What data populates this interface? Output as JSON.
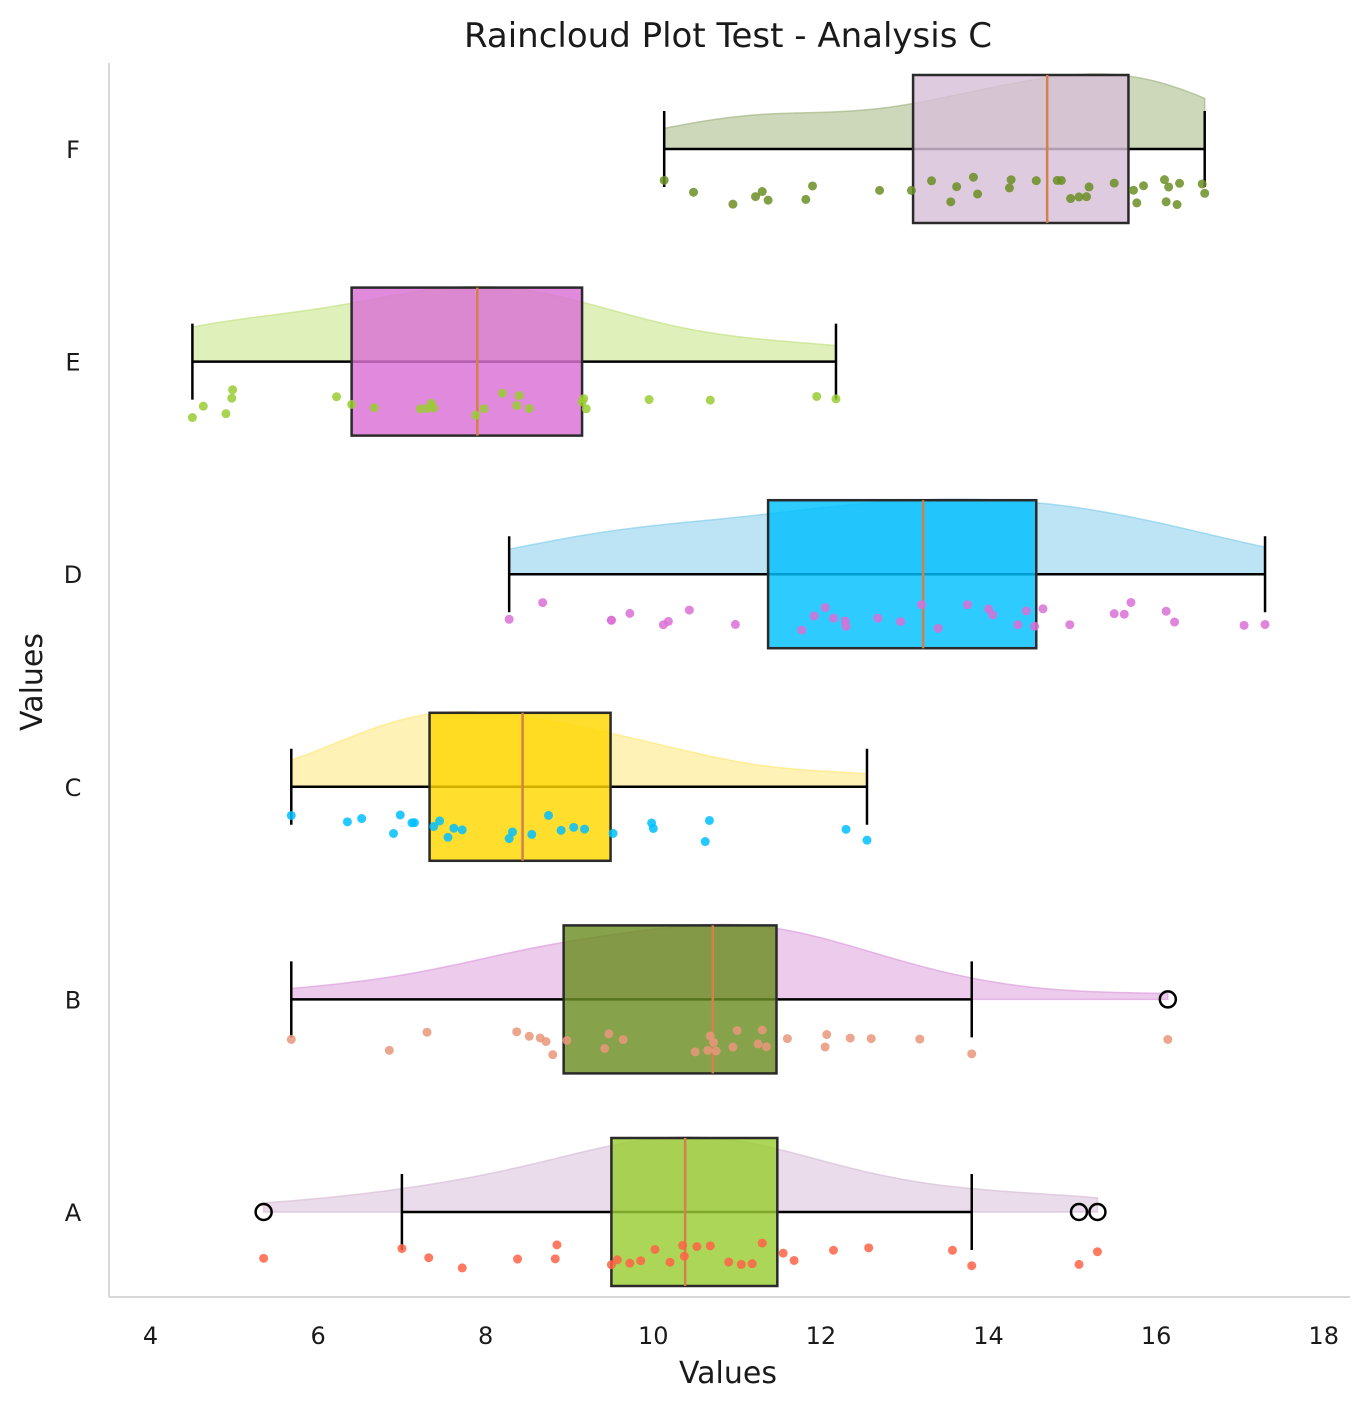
{
  "chart_data": {
    "type": "raincloud",
    "orientation": "horizontal",
    "title": "Raincloud Plot Test - Analysis C",
    "xlabel": "Values",
    "ylabel": "Values",
    "xlim": [
      3.5,
      18.3
    ],
    "xticks": [
      4,
      6,
      8,
      10,
      12,
      14,
      16,
      18
    ],
    "grid": false,
    "categories": [
      "A",
      "B",
      "C",
      "D",
      "E",
      "F"
    ],
    "series": [
      {
        "name": "A",
        "box_color": "#9acd32",
        "cloud_color": "#d8bfd8",
        "point_color": "#ff6347",
        "box": {
          "whislo": 7.0,
          "q1": 9.5,
          "med": 10.38,
          "q3": 11.48,
          "whishi": 13.8
        },
        "fliers": [
          5.35,
          15.08,
          15.3
        ],
        "density_range": [
          5.35,
          15.3
        ],
        "points": [
          5.35,
          7.0,
          7.32,
          7.72,
          8.38,
          8.83,
          8.85,
          9.5,
          9.57,
          9.72,
          9.85,
          10.02,
          10.2,
          10.35,
          10.37,
          10.52,
          10.68,
          10.9,
          11.05,
          11.18,
          11.3,
          11.55,
          11.68,
          12.15,
          12.57,
          13.57,
          13.8,
          15.08,
          15.3
        ]
      },
      {
        "name": "B",
        "box_color": "#6b8e23",
        "cloud_color": "#dda0dd",
        "point_color": "#e9967a",
        "box": {
          "whislo": 5.68,
          "q1": 8.93,
          "med": 10.71,
          "q3": 11.47,
          "whishi": 13.8
        },
        "fliers": [
          16.14
        ],
        "density_range": [
          5.68,
          16.14
        ],
        "points": [
          5.68,
          6.85,
          7.3,
          8.37,
          8.52,
          8.65,
          8.72,
          8.8,
          8.97,
          9.42,
          9.47,
          9.64,
          10.5,
          10.65,
          10.68,
          10.72,
          10.75,
          10.95,
          11.0,
          11.25,
          11.3,
          11.35,
          11.6,
          12.05,
          12.07,
          12.35,
          12.6,
          13.18,
          13.8,
          16.14
        ]
      },
      {
        "name": "C",
        "box_color": "#ffd700",
        "cloud_color": "#ffe87c",
        "point_color": "#00bfff",
        "box": {
          "whislo": 5.68,
          "q1": 7.33,
          "med": 8.44,
          "q3": 9.49,
          "whishi": 12.55
        },
        "fliers": [],
        "density_range": [
          5.68,
          12.55
        ],
        "points": [
          5.68,
          6.35,
          6.52,
          6.9,
          6.98,
          7.12,
          7.15,
          7.38,
          7.45,
          7.55,
          7.62,
          7.72,
          8.28,
          8.32,
          8.55,
          8.75,
          8.9,
          9.05,
          9.18,
          9.52,
          9.98,
          10.0,
          10.62,
          10.67,
          12.3,
          12.55
        ]
      },
      {
        "name": "D",
        "box_color": "#00bfff",
        "cloud_color": "#87ceeb",
        "point_color": "#da70d6",
        "box": {
          "whislo": 8.28,
          "q1": 11.37,
          "med": 13.22,
          "q3": 14.57,
          "whishi": 17.3
        },
        "fliers": [],
        "density_range": [
          8.28,
          17.3
        ],
        "points": [
          8.28,
          8.68,
          9.5,
          9.5,
          9.72,
          10.12,
          10.18,
          10.43,
          10.98,
          11.77,
          11.92,
          12.05,
          12.15,
          12.29,
          12.3,
          12.68,
          12.95,
          13.2,
          13.4,
          13.75,
          14.0,
          14.05,
          14.35,
          14.45,
          14.55,
          14.65,
          14.97,
          15.5,
          15.62,
          15.7,
          16.12,
          16.22,
          17.05,
          17.3
        ]
      },
      {
        "name": "E",
        "box_color": "#da70d6",
        "cloud_color": "#c5e384",
        "point_color": "#9acd32",
        "box": {
          "whislo": 4.5,
          "q1": 6.4,
          "med": 7.9,
          "q3": 9.15,
          "whishi": 12.18
        },
        "fliers": [],
        "density_range": [
          4.5,
          12.18
        ],
        "points": [
          4.5,
          4.63,
          4.9,
          4.97,
          4.98,
          6.22,
          6.4,
          6.67,
          7.22,
          7.3,
          7.35,
          7.38,
          7.88,
          7.98,
          8.2,
          8.37,
          8.4,
          8.52,
          9.15,
          9.17,
          9.2,
          9.95,
          10.68,
          11.95,
          12.18
        ]
      },
      {
        "name": "F",
        "box_color": "#d8bfd8",
        "cloud_color": "#a4b884",
        "point_color": "#6b8e23",
        "box": {
          "whislo": 10.13,
          "q1": 13.1,
          "med": 14.7,
          "q3": 15.67,
          "whishi": 16.58
        },
        "fliers": [],
        "density_range": [
          10.13,
          16.58
        ],
        "points": [
          10.13,
          10.48,
          10.95,
          11.22,
          11.3,
          11.37,
          11.82,
          11.9,
          12.7,
          13.08,
          13.32,
          13.55,
          13.62,
          13.82,
          13.87,
          14.25,
          14.27,
          14.57,
          14.82,
          14.87,
          14.98,
          15.08,
          15.17,
          15.2,
          15.5,
          15.73,
          15.77,
          15.85,
          16.1,
          16.12,
          16.15,
          16.25,
          16.28,
          16.55,
          16.58
        ]
      }
    ]
  }
}
